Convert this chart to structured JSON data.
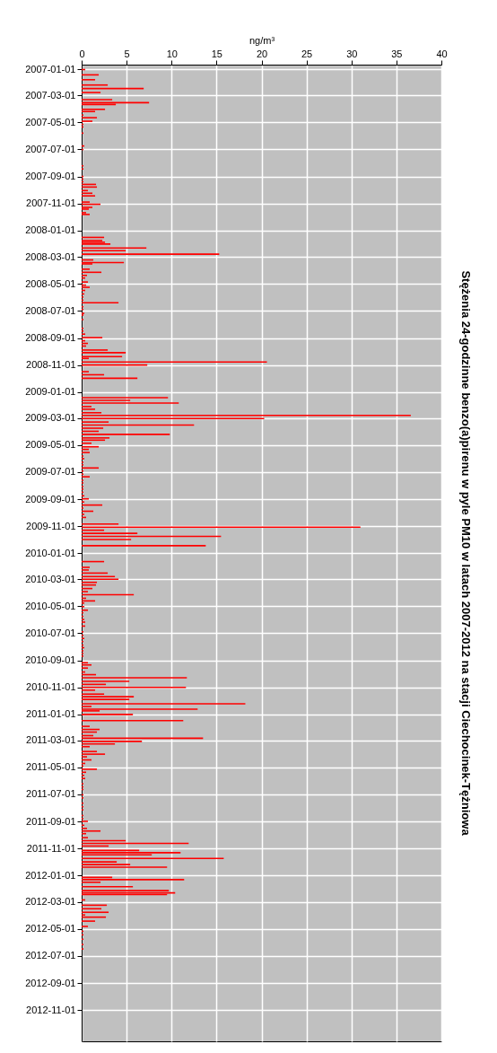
{
  "chart_data": {
    "type": "bar",
    "orientation": "horizontal",
    "title": "Stężenia 24-godzinne benzo(a)pirenu w pyle PM10 w latach 2007-2012 na stacji  Ciechocinek-Tężniowa",
    "xlabel": "ng/m³",
    "color": "#ff0000",
    "grid": true,
    "xlim": [
      0,
      40
    ],
    "xticks": [
      0,
      5,
      10,
      15,
      20,
      25,
      30,
      35,
      40
    ],
    "ylim": [
      "2012-12-31",
      "2007-01-01"
    ],
    "yticks": [
      "2007-01-01",
      "2007-03-01",
      "2007-05-01",
      "2007-07-01",
      "2007-09-01",
      "2007-11-01",
      "2008-01-01",
      "2008-03-01",
      "2008-05-01",
      "2008-07-01",
      "2008-09-01",
      "2008-11-01",
      "2009-01-01",
      "2009-03-01",
      "2009-05-01",
      "2009-07-01",
      "2009-09-01",
      "2009-11-01",
      "2010-01-01",
      "2010-03-01",
      "2010-05-01",
      "2010-07-01",
      "2010-09-01",
      "2010-11-01",
      "2011-01-01",
      "2011-03-01",
      "2011-05-01",
      "2011-07-01",
      "2011-09-01",
      "2011-11-01",
      "2012-01-01",
      "2012-03-01",
      "2012-05-01",
      "2012-07-01",
      "2012-09-01",
      "2012-11-01"
    ],
    "x": [
      "2007-01-02",
      "2007-01-14",
      "2007-01-25",
      "2007-02-06",
      "2007-02-14",
      "2007-02-23",
      "2007-03-11",
      "2007-03-18",
      "2007-03-22",
      "2007-04-02",
      "2007-04-07",
      "2007-04-15",
      "2007-04-21",
      "2007-04-29",
      "2007-05-06",
      "2007-05-12",
      "2007-05-26",
      "2007-06-24",
      "2007-07-02",
      "2007-08-08",
      "2007-08-15",
      "2007-09-01",
      "2007-09-07",
      "2007-09-13",
      "2007-09-19",
      "2007-09-25",
      "2007-10-03",
      "2007-10-09",
      "2007-10-15",
      "2007-10-29",
      "2007-11-03",
      "2007-11-10",
      "2007-11-14",
      "2007-11-22",
      "2007-11-26",
      "2008-01-17",
      "2008-01-24",
      "2008-01-28",
      "2008-02-01",
      "2008-02-10",
      "2008-02-16",
      "2008-02-24",
      "2008-03-08",
      "2008-03-14",
      "2008-03-17",
      "2008-03-29",
      "2008-04-05",
      "2008-04-12",
      "2008-04-18",
      "2008-04-27",
      "2008-05-04",
      "2008-05-09",
      "2008-05-16",
      "2008-05-24",
      "2008-05-31",
      "2008-06-07",
      "2008-06-13",
      "2008-06-22",
      "2008-06-28",
      "2008-07-07",
      "2008-07-11",
      "2008-07-21",
      "2008-08-10",
      "2008-08-16",
      "2008-08-23",
      "2008-08-31",
      "2008-09-07",
      "2008-09-13",
      "2008-09-19",
      "2008-09-28",
      "2008-10-04",
      "2008-10-13",
      "2008-10-17",
      "2008-10-25",
      "2008-11-01",
      "2008-11-16",
      "2008-11-23",
      "2008-12-01",
      "2009-01-14",
      "2009-01-20",
      "2009-01-26",
      "2009-02-03",
      "2009-02-09",
      "2009-02-17",
      "2009-02-23",
      "2009-03-02",
      "2009-03-10",
      "2009-03-17",
      "2009-03-24",
      "2009-03-31",
      "2009-04-07",
      "2009-04-15",
      "2009-04-20",
      "2009-04-27",
      "2009-05-05",
      "2009-05-11",
      "2009-05-18",
      "2009-05-26",
      "2009-06-01",
      "2009-06-09",
      "2009-06-15",
      "2009-06-22",
      "2009-06-29",
      "2009-07-06",
      "2009-07-12",
      "2009-07-20",
      "2009-07-26",
      "2009-08-03",
      "2009-08-09",
      "2009-08-16",
      "2009-08-24",
      "2009-08-31",
      "2009-09-07",
      "2009-09-14",
      "2009-09-21",
      "2009-09-28",
      "2009-10-05",
      "2009-10-12",
      "2009-10-27",
      "2009-11-03",
      "2009-11-10",
      "2009-11-17",
      "2009-11-24",
      "2009-12-01",
      "2009-12-15",
      "2010-01-20",
      "2010-02-02",
      "2010-02-08",
      "2010-02-15",
      "2010-02-23",
      "2010-03-01",
      "2010-03-08",
      "2010-03-14",
      "2010-03-22",
      "2010-03-29",
      "2010-04-05",
      "2010-04-13",
      "2010-04-19",
      "2010-04-24",
      "2010-05-02",
      "2010-05-10",
      "2010-05-16",
      "2010-05-24",
      "2010-05-31",
      "2010-06-06",
      "2010-06-15",
      "2010-06-28",
      "2010-07-06",
      "2010-07-13",
      "2010-07-20",
      "2010-07-28",
      "2010-08-03",
      "2010-08-10",
      "2010-08-16",
      "2010-08-22",
      "2010-09-06",
      "2010-09-11",
      "2010-09-18",
      "2010-09-27",
      "2010-10-03",
      "2010-10-10",
      "2010-10-18",
      "2010-10-25",
      "2010-11-01",
      "2010-11-07",
      "2010-11-16",
      "2010-11-22",
      "2010-11-28",
      "2010-12-08",
      "2010-12-14",
      "2010-12-20",
      "2010-12-24",
      "2011-01-01",
      "2011-01-15",
      "2011-01-28",
      "2011-02-04",
      "2011-02-10",
      "2011-02-18",
      "2011-02-24",
      "2011-03-03",
      "2011-03-09",
      "2011-03-15",
      "2011-03-26",
      "2011-04-01",
      "2011-04-07",
      "2011-04-14",
      "2011-04-22",
      "2011-04-28",
      "2011-05-05",
      "2011-05-12",
      "2011-05-19",
      "2011-05-26",
      "2011-06-07",
      "2011-06-14",
      "2011-06-20",
      "2011-07-02",
      "2011-07-09",
      "2011-07-21",
      "2011-07-29",
      "2011-08-05",
      "2011-08-18",
      "2011-08-25",
      "2011-08-31",
      "2011-09-09",
      "2011-09-16",
      "2011-09-22",
      "2011-09-28",
      "2011-10-07",
      "2011-10-14",
      "2011-10-20",
      "2011-10-26",
      "2011-11-05",
      "2011-11-10",
      "2011-11-15",
      "2011-11-23",
      "2011-12-01",
      "2011-12-07",
      "2011-12-13",
      "2012-01-05",
      "2012-01-10",
      "2012-01-16",
      "2012-01-26",
      "2012-02-04",
      "2012-02-09",
      "2012-02-13",
      "2012-02-25",
      "2012-03-08",
      "2012-03-16",
      "2012-03-24",
      "2012-03-30",
      "2012-04-04",
      "2012-04-13",
      "2012-04-25",
      "2012-05-06",
      "2012-05-14",
      "2012-05-24",
      "2012-06-05",
      "2012-06-15"
    ],
    "values": [
      0.4,
      1.9,
      1.5,
      2.9,
      6.9,
      2.1,
      3.4,
      7.5,
      3.8,
      2.6,
      1.5,
      0.2,
      1.7,
      1.2,
      0.2,
      0.2,
      0.2,
      0.3,
      0.2,
      0.2,
      0.2,
      0.2,
      0.2,
      0.2,
      1.6,
      1.7,
      0.7,
      1.2,
      1.5,
      0.9,
      2.1,
      1.2,
      0.8,
      0.5,
      0.9,
      2.5,
      2.3,
      2.6,
      3.2,
      7.2,
      4.9,
      15.3,
      1.3,
      4.7,
      1.2,
      0.9,
      2.2,
      0.6,
      0.4,
      0.7,
      0.5,
      0.9,
      0.4,
      0.3,
      0.2,
      0.2,
      4.1,
      0.2,
      0.2,
      0.3,
      0.2,
      0.2,
      0.2,
      0.2,
      0.4,
      2.3,
      0.4,
      0.7,
      0.5,
      2.9,
      4.9,
      4.5,
      0.8,
      20.6,
      7.3,
      0.8,
      2.5,
      6.2,
      9.6,
      5.4,
      10.8,
      1.1,
      1.5,
      2.2,
      36.6,
      20.3,
      3.0,
      12.5,
      2.4,
      1.9,
      9.8,
      3.1,
      2.6,
      1.1,
      1.9,
      0.8,
      0.9,
      0.2,
      0.3,
      0.2,
      0.2,
      1.9,
      0.2,
      0.2,
      0.9,
      0.2,
      0.2,
      0.2,
      0.2,
      0.2,
      0.3,
      0.8,
      0.3,
      2.3,
      0.2,
      1.3,
      0.3,
      0.5,
      4.1,
      31.0,
      2.5,
      6.2,
      15.5,
      5.5,
      13.8,
      2.5,
      0.9,
      0.8,
      2.9,
      3.7,
      4.1,
      1.7,
      1.6,
      1.2,
      0.7,
      5.8,
      0.5,
      1.5,
      0.3,
      0.3,
      0.7,
      0.2,
      0.2,
      0.3,
      0.4,
      0.4,
      0.2,
      0.2,
      0.3,
      0.2,
      0.2,
      0.3,
      0.2,
      0.2,
      0.2,
      0.7,
      1.1,
      0.7,
      0.4,
      1.6,
      11.7,
      5.3,
      2.7,
      11.6,
      1.5,
      2.5,
      5.8,
      5.3,
      18.2,
      1.1,
      12.9,
      2.0,
      5.7,
      11.3,
      0.9,
      2.0,
      1.7,
      1.3,
      13.5,
      6.7,
      3.7,
      0.9,
      1.7,
      2.6,
      0.6,
      1.1,
      0.4,
      0.2,
      1.7,
      0.5,
      0.3,
      0.4,
      0.2,
      0.2,
      0.2,
      0.2,
      0.2,
      0.2,
      0.2,
      0.2,
      0.2,
      0.2,
      0.7,
      0.3,
      0.6,
      2.1,
      0.5,
      0.7,
      4.9,
      11.9,
      3.0,
      6.4,
      11.0,
      7.8,
      15.8,
      3.9,
      5.4,
      9.5,
      3.4,
      11.4,
      2.1,
      5.7,
      9.7,
      10.4,
      9.5,
      0.4,
      2.8,
      2.2,
      3.0,
      0.4,
      2.7,
      1.5,
      0.7,
      0.2,
      0.2,
      0.2,
      0.2,
      0.2
    ]
  }
}
